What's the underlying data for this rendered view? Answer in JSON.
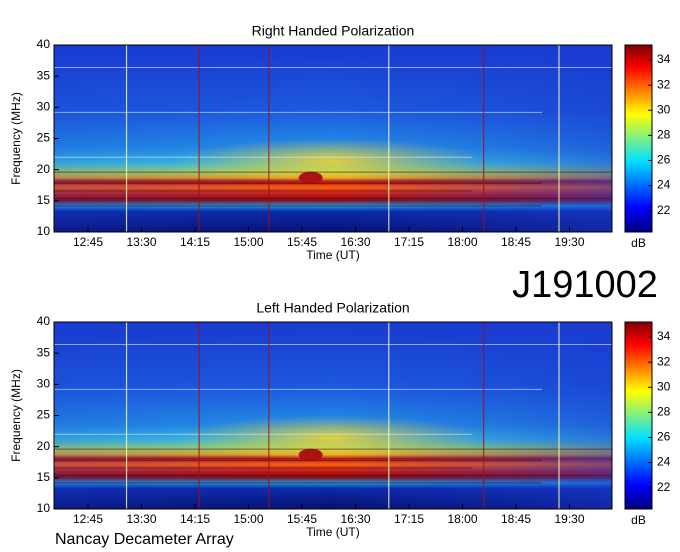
{
  "chart_data": [
    {
      "type": "heatmap",
      "title": "Right Handed Polarization",
      "xlabel": "Time (UT)",
      "ylabel": "Frequency (MHz)",
      "categories": [
        "12:45",
        "13:30",
        "14:15",
        "15:00",
        "15:45",
        "16:30",
        "17:15",
        "18:00",
        "18:45",
        "19:30"
      ],
      "ylim": [
        10,
        40
      ],
      "yticks": [
        10,
        15,
        20,
        25,
        30,
        35,
        40
      ],
      "colorbar": {
        "label": "dB",
        "lim": [
          20.3,
          35.2
        ],
        "ticks": [
          22,
          24,
          26,
          28,
          30,
          32,
          34
        ]
      }
    },
    {
      "type": "heatmap",
      "title": "Left Handed Polarization",
      "xlabel": "Time (UT)",
      "ylabel": "Frequency (MHz)",
      "categories": [
        "12:45",
        "13:30",
        "14:15",
        "15:00",
        "15:45",
        "16:30",
        "17:15",
        "18:00",
        "18:45",
        "19:30"
      ],
      "ylim": [
        10,
        40
      ],
      "yticks": [
        10,
        15,
        20,
        25,
        30,
        35,
        40
      ],
      "colorbar": {
        "label": "dB",
        "lim": [
          20.3,
          35.2
        ],
        "ticks": [
          22,
          24,
          26,
          28,
          30,
          32,
          34
        ]
      }
    }
  ],
  "annotations": {
    "event": "J191002",
    "observatory": "Nancay Decameter Array"
  }
}
